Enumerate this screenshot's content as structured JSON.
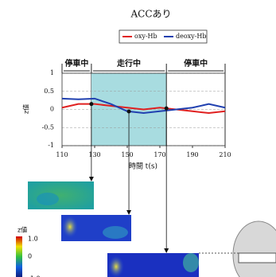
{
  "chart_data": {
    "type": "line",
    "title": "ACCあり",
    "x": [
      110,
      120,
      130,
      140,
      150,
      160,
      170,
      180,
      190,
      200,
      210
    ],
    "series": [
      {
        "name": "oxy-Hb",
        "color": "#e02020",
        "values": [
          0.05,
          0.15,
          0.15,
          0.1,
          0.05,
          0.0,
          0.05,
          0.0,
          -0.05,
          -0.1,
          -0.05
        ]
      },
      {
        "name": "deoxy-Hb",
        "color": "#2040b0",
        "values": [
          0.3,
          0.28,
          0.3,
          0.15,
          -0.05,
          -0.1,
          -0.05,
          0.0,
          0.05,
          0.15,
          0.05
        ]
      }
    ],
    "xlim": [
      110,
      210
    ],
    "xticks": [
      110,
      130,
      150,
      170,
      190,
      210
    ],
    "ylim": [
      -1,
      1
    ],
    "yticks": [
      1,
      0.5,
      0,
      -0.5,
      -1
    ],
    "xlabel": "時間 t(s)",
    "ylabel": "z値",
    "grid": true,
    "phases": [
      {
        "label": "停車中",
        "start": 110,
        "end": 128
      },
      {
        "label": "走行中",
        "start": 128,
        "end": 174
      },
      {
        "label": "停車中",
        "start": 174,
        "end": 210
      }
    ],
    "colorbar": {
      "label": "z値",
      "ticks": [
        {
          "value": 1,
          "label": "1.0"
        },
        0,
        {
          "value": -1,
          "label": "-1.0"
        }
      ]
    }
  }
}
